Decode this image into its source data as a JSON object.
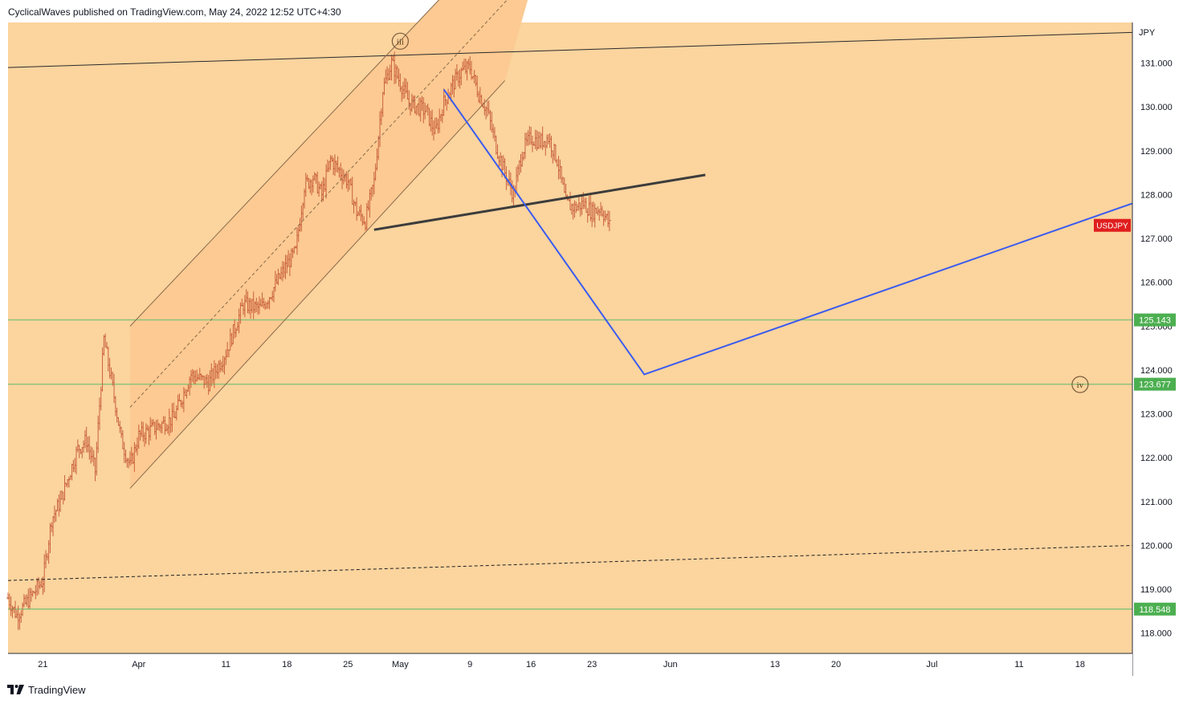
{
  "header": {
    "publisher": "CyclicalWaves",
    "published_text": "CyclicalWaves published on TradingView.com, May 24, 2022 12:52 UTC+4:30"
  },
  "footer": {
    "brand": "TradingView"
  },
  "colors": {
    "background": "#fbd49e",
    "channel_fill": "#fcca92",
    "candle": "#c8603d",
    "support_line": "#8bc47a",
    "support_label_bg": "#4caf50",
    "price_label_bg": "#e01e1e",
    "projection_line": "#3a5bef",
    "trendline": "#3c3c3c"
  },
  "chart_data": {
    "type": "candlestick",
    "symbol": "USDJPY",
    "currency": "JPY",
    "ylim": [
      117.5,
      132.0
    ],
    "y_ticks": [
      "118.000",
      "119.000",
      "120.000",
      "121.000",
      "122.000",
      "123.000",
      "124.000",
      "125.000",
      "126.000",
      "127.000",
      "128.000",
      "129.000",
      "130.000",
      "131.000"
    ],
    "x_range": [
      "2022-03-17",
      "2022-07-24"
    ],
    "x_ticks": [
      {
        "date": "2022-03-21",
        "label": "21"
      },
      {
        "date": "2022-04-01",
        "label": "Apr"
      },
      {
        "date": "2022-04-11",
        "label": "11"
      },
      {
        "date": "2022-04-18",
        "label": "18"
      },
      {
        "date": "2022-04-25",
        "label": "25"
      },
      {
        "date": "2022-05-01",
        "label": "May"
      },
      {
        "date": "2022-05-09",
        "label": "9"
      },
      {
        "date": "2022-05-16",
        "label": "16"
      },
      {
        "date": "2022-05-23",
        "label": "23"
      },
      {
        "date": "2022-06-01",
        "label": "Jun"
      },
      {
        "date": "2022-06-13",
        "label": "13"
      },
      {
        "date": "2022-06-20",
        "label": "20"
      },
      {
        "date": "2022-07-01",
        "label": "Jul"
      },
      {
        "date": "2022-07-11",
        "label": "11"
      },
      {
        "date": "2022-07-18",
        "label": "18"
      }
    ],
    "price_path": [
      [
        "2022-03-17",
        118.8
      ],
      [
        "2022-03-18",
        118.4
      ],
      [
        "2022-03-21",
        119.2
      ],
      [
        "2022-03-22",
        120.6
      ],
      [
        "2022-03-23",
        121.0
      ],
      [
        "2022-03-24",
        121.6
      ],
      [
        "2022-03-25",
        122.2
      ],
      [
        "2022-03-26",
        122.4
      ],
      [
        "2022-03-27",
        121.7
      ],
      [
        "2022-03-28",
        124.7
      ],
      [
        "2022-03-29",
        123.6
      ],
      [
        "2022-03-30",
        122.4
      ],
      [
        "2022-03-31",
        121.8
      ],
      [
        "2022-04-01",
        122.5
      ],
      [
        "2022-04-03",
        122.7
      ],
      [
        "2022-04-05",
        122.9
      ],
      [
        "2022-04-07",
        123.9
      ],
      [
        "2022-04-09",
        123.7
      ],
      [
        "2022-04-11",
        124.4
      ],
      [
        "2022-04-13",
        125.5
      ],
      [
        "2022-04-15",
        125.4
      ],
      [
        "2022-04-16",
        125.7
      ],
      [
        "2022-04-18",
        126.4
      ],
      [
        "2022-04-19",
        126.7
      ],
      [
        "2022-04-20",
        128.2
      ],
      [
        "2022-04-21",
        128.4
      ],
      [
        "2022-04-22",
        128.0
      ],
      [
        "2022-04-23",
        128.8
      ],
      [
        "2022-04-25",
        128.3
      ],
      [
        "2022-04-26",
        127.6
      ],
      [
        "2022-04-27",
        127.4
      ],
      [
        "2022-04-28",
        128.3
      ],
      [
        "2022-04-29",
        130.4
      ],
      [
        "2022-04-30",
        131.0
      ],
      [
        "2022-05-02",
        130.1
      ],
      [
        "2022-05-03",
        130.0
      ],
      [
        "2022-05-04",
        129.9
      ],
      [
        "2022-05-05",
        129.4
      ],
      [
        "2022-05-06",
        130.1
      ],
      [
        "2022-05-07",
        130.5
      ],
      [
        "2022-05-08",
        130.8
      ],
      [
        "2022-05-09",
        130.9
      ],
      [
        "2022-05-10",
        130.3
      ],
      [
        "2022-05-11",
        129.9
      ],
      [
        "2022-05-12",
        129.1
      ],
      [
        "2022-05-13",
        128.5
      ],
      [
        "2022-05-14",
        128.0
      ],
      [
        "2022-05-15",
        129.0
      ],
      [
        "2022-05-16",
        129.3
      ],
      [
        "2022-05-17",
        129.2
      ],
      [
        "2022-05-18",
        129.3
      ],
      [
        "2022-05-19",
        128.8
      ],
      [
        "2022-05-20",
        127.8
      ],
      [
        "2022-05-21",
        127.7
      ],
      [
        "2022-05-22",
        127.8
      ],
      [
        "2022-05-23",
        127.6
      ],
      [
        "2022-05-24",
        127.7
      ],
      [
        "2022-05-25",
        127.3
      ]
    ],
    "horizontal_levels": [
      125.143,
      123.677,
      118.548
    ],
    "level_labels": [
      "125.143",
      "123.677",
      "118.548"
    ],
    "current_price_label": "USDJPY",
    "wave_labels": [
      {
        "text": "iii",
        "date": "2022-05-01",
        "price": 131.5
      },
      {
        "text": "iv",
        "date": "2022-07-18",
        "price": 123.67
      }
    ],
    "trendlines": [
      {
        "name": "upper-resistance",
        "style": "solid",
        "points": [
          [
            "2022-03-17",
            130.9
          ],
          [
            "2022-07-24",
            131.7
          ]
        ]
      },
      {
        "name": "lower-dashed",
        "style": "dashed",
        "points": [
          [
            "2022-03-17",
            119.2
          ],
          [
            "2022-07-24",
            120.0
          ]
        ]
      },
      {
        "name": "neckline",
        "style": "thick",
        "points": [
          [
            "2022-04-28",
            127.2
          ],
          [
            "2022-06-05",
            128.45
          ]
        ]
      },
      {
        "name": "channel-upper",
        "style": "solid",
        "points": [
          [
            "2022-03-31",
            125.0
          ],
          [
            "2022-05-20",
            135.5
          ]
        ]
      },
      {
        "name": "channel-lower",
        "style": "solid",
        "points": [
          [
            "2022-03-31",
            121.3
          ],
          [
            "2022-05-13",
            130.6
          ]
        ]
      },
      {
        "name": "channel-mid",
        "style": "dashed",
        "points": [
          [
            "2022-03-31",
            123.15
          ],
          [
            "2022-05-14",
            132.6
          ]
        ]
      }
    ],
    "projection": [
      [
        "2022-05-06",
        130.4
      ],
      [
        "2022-05-29",
        123.9
      ],
      [
        "2022-07-24",
        127.8
      ]
    ]
  }
}
